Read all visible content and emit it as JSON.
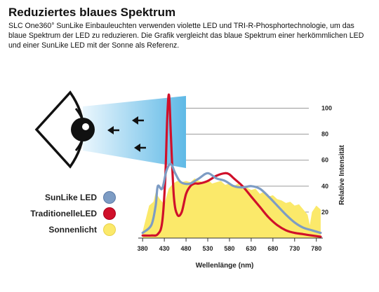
{
  "header": {
    "title": "Reduziertes blaues Spektrum",
    "description": "SLC One360°  SunLike Einbauleuchten verwenden violette LED und TRI-R-Phosphortechnologie, um das blaue Spektrum der LED zu reduzieren. Die Grafik vergleicht das blaue Spektrum einer herkömmlichen LED und einer SunLike LED mit der Sonne als Referenz."
  },
  "icons": [
    "eye-icon",
    "light-beam",
    "arrow-left-icon"
  ],
  "colors": {
    "sunlike": "#7d9cc4",
    "traditional": "#d0102a",
    "sun": "#fbe96a",
    "beam": "#6fc2e9"
  },
  "chart_data": {
    "type": "line",
    "xlabel": "Wellenlänge (nm)",
    "ylabel": "Relative Intensität",
    "xlim": [
      370,
      795
    ],
    "ylim": [
      0,
      110
    ],
    "x_ticks": [
      "380",
      "430",
      "480",
      "530",
      "580",
      "630",
      "680",
      "730",
      "780"
    ],
    "y_ticks": [
      "20",
      "40",
      "60",
      "80",
      "100"
    ],
    "series": [
      {
        "name": "Sonnenlicht",
        "style": "area",
        "x": [
          380,
          395,
          405,
          410,
          420,
          430,
          440,
          450,
          460,
          470,
          480,
          490,
          500,
          510,
          520,
          530,
          540,
          550,
          560,
          570,
          580,
          590,
          600,
          610,
          620,
          630,
          640,
          650,
          660,
          670,
          680,
          690,
          700,
          710,
          720,
          730,
          740,
          750,
          760,
          765,
          770,
          780,
          790
        ],
        "values": [
          5,
          25,
          28,
          35,
          30,
          26,
          38,
          42,
          44,
          43,
          44,
          43,
          46,
          44,
          43,
          45,
          42,
          43,
          44,
          41,
          42,
          40,
          42,
          38,
          39,
          37,
          38,
          34,
          36,
          32,
          33,
          30,
          29,
          27,
          28,
          25,
          26,
          22,
          18,
          10,
          20,
          25,
          22
        ]
      },
      {
        "name": "TraditionelleLED",
        "style": "line",
        "x": [
          380,
          400,
          415,
          425,
          432,
          437,
          441,
          445,
          452,
          460,
          470,
          480,
          490,
          500,
          510,
          530,
          550,
          570,
          580,
          590,
          610,
          630,
          650,
          670,
          690,
          710,
          730,
          750,
          770,
          790
        ],
        "values": [
          2,
          2,
          3,
          12,
          45,
          95,
          110,
          80,
          32,
          18,
          20,
          34,
          40,
          42,
          42,
          44,
          48,
          50,
          49,
          46,
          40,
          32,
          24,
          16,
          10,
          6,
          4,
          3,
          2,
          1
        ]
      },
      {
        "name": "SunLike LED",
        "style": "line",
        "x": [
          380,
          400,
          410,
          415,
          425,
          435,
          445,
          455,
          465,
          475,
          490,
          510,
          530,
          550,
          570,
          590,
          610,
          630,
          650,
          670,
          690,
          710,
          730,
          750,
          770,
          790
        ],
        "values": [
          4,
          10,
          25,
          40,
          38,
          52,
          57,
          50,
          44,
          42,
          42,
          46,
          50,
          46,
          44,
          40,
          39,
          40,
          38,
          32,
          25,
          18,
          12,
          8,
          6,
          4
        ]
      }
    ],
    "legend": [
      "SunLike LED",
      "TraditionelleLED",
      "Sonnenlicht"
    ],
    "legend_position": "left"
  }
}
